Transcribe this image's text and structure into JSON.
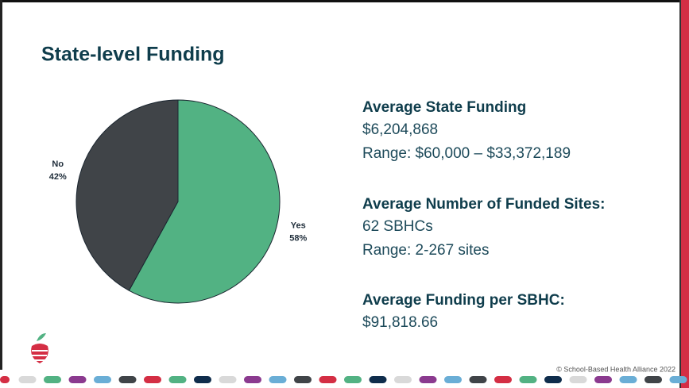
{
  "chart_data": {
    "type": "pie",
    "title": "State-level Funding",
    "categories": [
      "Yes",
      "No"
    ],
    "values": [
      58,
      42
    ],
    "value_labels": [
      "58%",
      "42%"
    ],
    "colors": [
      "#52b283",
      "#404448"
    ]
  },
  "stats": [
    {
      "heading": "Average State Funding",
      "lines": [
        "$6,204,868",
        "Range: $60,000 – $33,372,189"
      ]
    },
    {
      "heading": "Average Number of Funded Sites:",
      "lines": [
        "62 SBHCs",
        "Range: 2-267 sites"
      ]
    },
    {
      "heading": "Average Funding per SBHC:",
      "lines": [
        "$91,818.66"
      ]
    }
  ],
  "footer": "© School-Based Health Alliance 2022"
}
